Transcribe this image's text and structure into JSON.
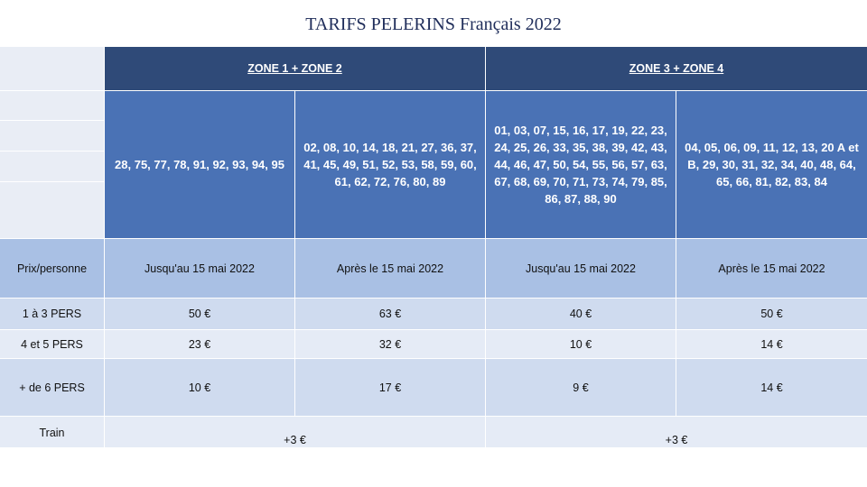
{
  "title": "TARIFS PELERINS Français 2022",
  "zones": {
    "zone12": "ZONE 1 + ZONE 2",
    "zone34": "ZONE 3 + ZONE 4"
  },
  "departments": {
    "col1": "28, 75, 77, 78, 91, 92, 93, 94, 95",
    "col2": "02, 08, 10, 14, 18, 21, 27, 36, 37, 41, 45, 49, 51, 52, 53, 58, 59, 60, 61, 62, 72, 76, 80, 89",
    "col3": "01, 03, 07, 15, 16, 17, 19, 22, 23, 24, 25, 26, 33, 35, 38, 39, 42, 43, 44, 46, 47, 50, 54, 55, 56, 57, 63, 67, 68, 69, 70, 71, 73, 74, 79, 85, 86, 87, 88, 90",
    "col4": "04, 05, 06, 09, 11, 12, 13, 20 A et B, 29, 30, 31, 32, 34, 40, 48, 64, 65, 66, 81, 82, 83, 84"
  },
  "header_row": {
    "label": "Prix/personne",
    "c1": "Jusqu'au 15 mai 2022",
    "c2": "Après le 15 mai 2022",
    "c3": "Jusqu'au 15 mai 2022",
    "c4": "Après le 15 mai 2022"
  },
  "rows": [
    {
      "label": "1 à 3 PERS",
      "c1": "50 €",
      "c2": "63 €",
      "c3": "40 €",
      "c4": "50 €"
    },
    {
      "label": "4 et 5 PERS",
      "c1": "23 €",
      "c2": "32 €",
      "c3": "10 €",
      "c4": "14 €"
    },
    {
      "label": "+ de 6 PERS",
      "c1": "10 €",
      "c2": "17 €",
      "c3": "9 €",
      "c4": "14 €"
    }
  ],
  "train": {
    "label": "Train",
    "zone12": "+3 €",
    "zone34": "+3 €"
  }
}
